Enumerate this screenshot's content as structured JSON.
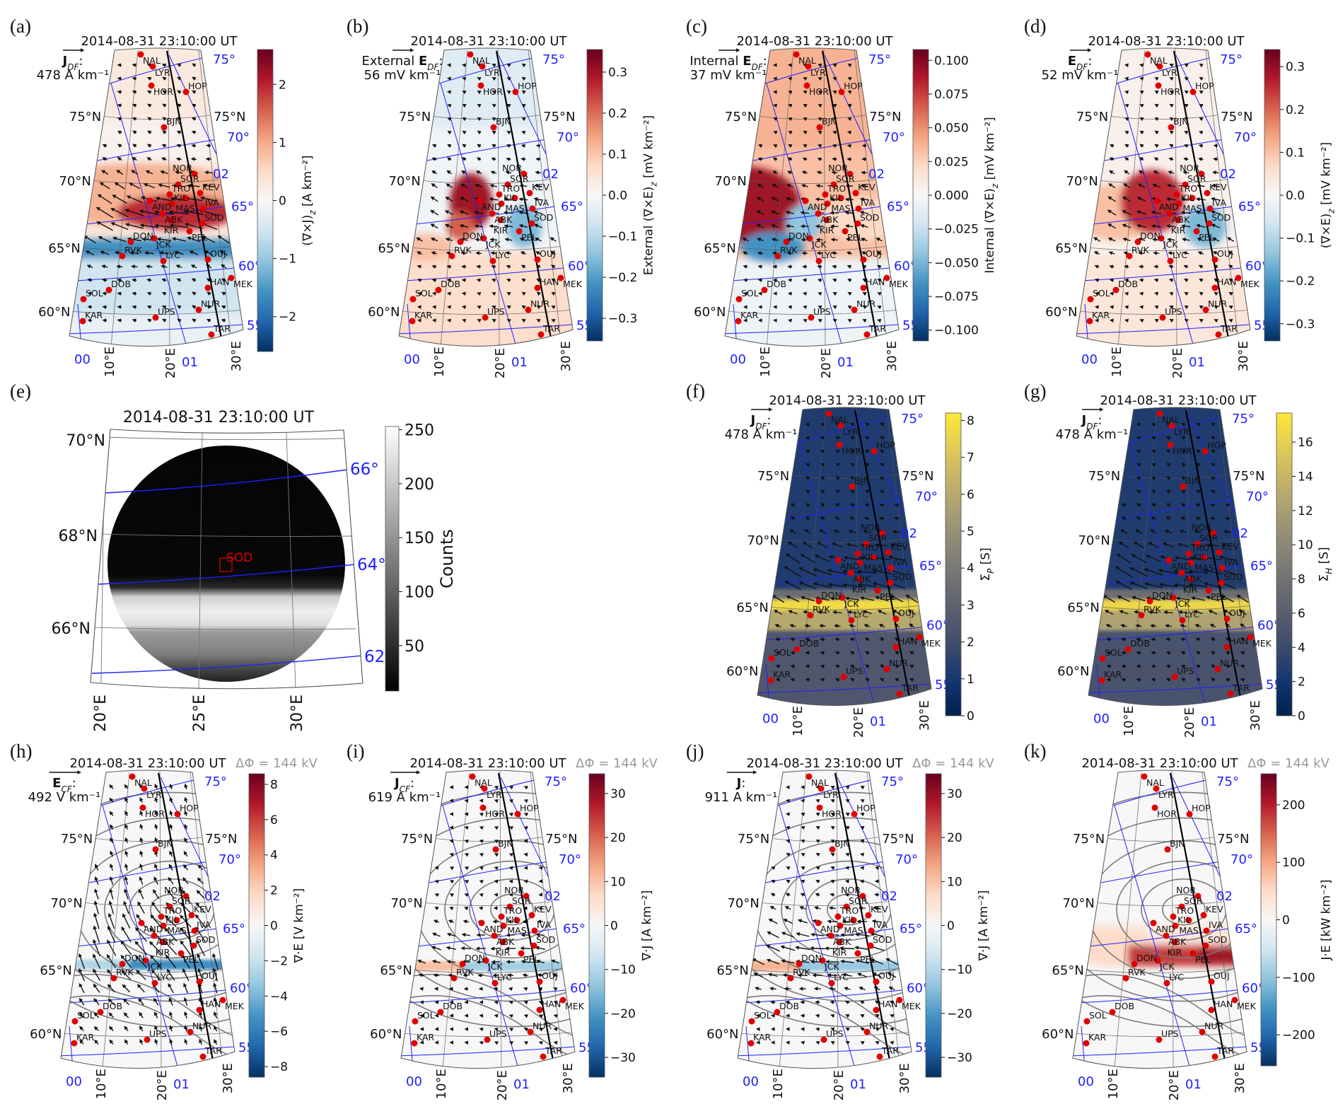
{
  "colors": {
    "station_marker": "#e00000",
    "magnetic_grid": "#2020ff",
    "meridian_line": "#000000",
    "delta_phi_text": "#9a9a9a"
  },
  "stations": [
    "NAL",
    "LYR",
    "HOR",
    "HOP",
    "BJN",
    "NOR",
    "SOR",
    "TRO",
    "AND",
    "KIL",
    "MAS",
    "KEV",
    "IVA",
    "ABK",
    "KIR",
    "SOD",
    "PEL",
    "JCK",
    "DON",
    "RVK",
    "LYC",
    "OUJ",
    "MEK",
    "HAN",
    "DOB",
    "SOL",
    "NUR",
    "KAR",
    "UPS",
    "TAR"
  ],
  "map_labels": {
    "lat": [
      "75°N",
      "70°N",
      "65°N",
      "60°N"
    ],
    "lon": [
      "10°E",
      "20°E",
      "30°E"
    ],
    "mlat": [
      "75°",
      "70°",
      "65°",
      "60°",
      "55"
    ],
    "mlt": [
      "00",
      "01",
      "02"
    ]
  },
  "panels": [
    {
      "id": "a",
      "label": "(a)",
      "title": "2014-08-31 23:10:00 UT",
      "vector": {
        "prefix": "",
        "symbol": "J",
        "sub": "DF",
        "suffix": ":",
        "value": "478 A km⁻¹"
      },
      "colorbar": {
        "label_main": "(∇×J)",
        "label_sub": "z",
        "label_unit": " [A km⁻²]",
        "colormap": "RdBu_r",
        "range": [
          -2.6,
          2.6
        ],
        "ticks": [
          -2,
          -1,
          0,
          1,
          2
        ],
        "tick_labels": [
          "−2",
          "−1",
          "0",
          "1",
          "2"
        ]
      }
    },
    {
      "id": "b",
      "label": "(b)",
      "title": "2014-08-31 23:10:00 UT",
      "vector": {
        "prefix": "External ",
        "symbol": "E",
        "sub": "DF",
        "suffix": ":",
        "value": "56 mV km⁻¹"
      },
      "colorbar": {
        "label_main": "External (∇×E)",
        "label_sub": "z",
        "label_unit": " [mV km⁻²]",
        "colormap": "RdBu_r",
        "range": [
          -0.355,
          0.355
        ],
        "ticks": [
          -0.3,
          -0.2,
          -0.1,
          0,
          0.1,
          0.2,
          0.3
        ],
        "tick_labels": [
          "−0.3",
          "−0.2",
          "−0.1",
          "0.0",
          "0.1",
          "0.2",
          "0.3"
        ]
      }
    },
    {
      "id": "c",
      "label": "(c)",
      "title": "2014-08-31 23:10:00 UT",
      "vector": {
        "prefix": "Internal ",
        "symbol": "E",
        "sub": "DF",
        "suffix": ":",
        "value": "37 mV km⁻¹"
      },
      "colorbar": {
        "label_main": "Internal (∇×E)",
        "label_sub": "z",
        "label_unit": " [mV km⁻²]",
        "colormap": "RdBu_r",
        "range": [
          -0.108,
          0.108
        ],
        "ticks": [
          -0.1,
          -0.075,
          -0.05,
          -0.025,
          0,
          0.025,
          0.05,
          0.075,
          0.1
        ],
        "tick_labels": [
          "−0.100",
          "−0.075",
          "−0.050",
          "−0.025",
          "0.000",
          "0.025",
          "0.050",
          "0.075",
          "0.100"
        ]
      }
    },
    {
      "id": "d",
      "label": "(d)",
      "title": "2014-08-31 23:10:00 UT",
      "vector": {
        "prefix": "",
        "symbol": "E",
        "sub": "DF",
        "suffix": ":",
        "value": "52 mV km⁻¹"
      },
      "colorbar": {
        "label_main": "(∇×E)",
        "label_sub": "z",
        "label_unit": " [mV km⁻²]",
        "colormap": "RdBu_r",
        "range": [
          -0.34,
          0.34
        ],
        "ticks": [
          -0.3,
          -0.2,
          -0.1,
          0,
          0.1,
          0.2,
          0.3
        ],
        "tick_labels": [
          "−0.3",
          "−0.2",
          "−0.1",
          "0.0",
          "0.1",
          "0.2",
          "0.3"
        ]
      }
    },
    {
      "id": "e",
      "label": "(e)",
      "title": "2014-08-31 23:10:00 UT",
      "station": "SOD",
      "lat_labels": [
        "70°N",
        "68°N",
        "66°N"
      ],
      "lon_labels": [
        "20°E",
        "25°E",
        "30°E"
      ],
      "mlat_labels": [
        "66°",
        "64°",
        "62"
      ],
      "colorbar": {
        "label_main": "Counts",
        "label_sub": "",
        "label_unit": "",
        "colormap": "gray",
        "range": [
          8,
          253
        ],
        "ticks": [
          50,
          100,
          150,
          200,
          250
        ],
        "tick_labels": [
          "50",
          "100",
          "150",
          "200",
          "250"
        ]
      }
    },
    {
      "id": "f",
      "label": "(f)",
      "title": "2014-08-31 23:10:00 UT",
      "vector": {
        "prefix": "",
        "symbol": "J",
        "sub": "DF",
        "suffix": ":",
        "value": "478 A km⁻¹"
      },
      "colorbar": {
        "label_main": "Σ",
        "label_sub": "P",
        "label_unit": " [S]",
        "colormap": "cividis",
        "range": [
          0,
          8.2
        ],
        "ticks": [
          0,
          1,
          2,
          3,
          4,
          5,
          6,
          7,
          8
        ],
        "tick_labels": [
          "0",
          "1",
          "2",
          "3",
          "4",
          "5",
          "6",
          "7",
          "8"
        ]
      }
    },
    {
      "id": "g",
      "label": "(g)",
      "title": "2014-08-31 23:10:00 UT",
      "vector": {
        "prefix": "",
        "symbol": "J",
        "sub": "DF",
        "suffix": ":",
        "value": "478 A km⁻¹"
      },
      "colorbar": {
        "label_main": "Σ",
        "label_sub": "H",
        "label_unit": " [S]",
        "colormap": "cividis",
        "range": [
          0,
          17.7
        ],
        "ticks": [
          0,
          2,
          4,
          6,
          8,
          10,
          12,
          14,
          16
        ],
        "tick_labels": [
          "0",
          "2",
          "4",
          "6",
          "8",
          "10",
          "12",
          "14",
          "16"
        ]
      }
    },
    {
      "id": "h",
      "label": "(h)",
      "title": "2014-08-31 23:10:00 UT",
      "delta_phi": "ΔΦ = 144 kV",
      "vector": {
        "prefix": "",
        "symbol": "E",
        "sub": "CF",
        "suffix": ":",
        "value": "492 V km⁻¹"
      },
      "colorbar": {
        "label_main": "∇·E",
        "label_sub": "",
        "label_unit": " [V km⁻²]",
        "colormap": "RdBu_r",
        "range": [
          -8.6,
          8.6
        ],
        "ticks": [
          -8,
          -6,
          -4,
          -2,
          0,
          2,
          4,
          6,
          8
        ],
        "tick_labels": [
          "−8",
          "−6",
          "−4",
          "−2",
          "0",
          "2",
          "4",
          "6",
          "8"
        ]
      }
    },
    {
      "id": "i",
      "label": "(i)",
      "title": "2014-08-31 23:10:00 UT",
      "delta_phi": "ΔΦ = 144 kV",
      "vector": {
        "prefix": "",
        "symbol": "J",
        "sub": "CF",
        "suffix": ":",
        "value": "619 A km⁻¹"
      },
      "colorbar": {
        "label_main": "∇·J",
        "label_sub": "",
        "label_unit": " [A km⁻²]",
        "colormap": "RdBu_r",
        "range": [
          -34.5,
          34.5
        ],
        "ticks": [
          -30,
          -20,
          -10,
          0,
          10,
          20,
          30
        ],
        "tick_labels": [
          "−30",
          "−20",
          "−10",
          "0",
          "10",
          "20",
          "30"
        ]
      }
    },
    {
      "id": "j",
      "label": "(j)",
      "title": "2014-08-31 23:10:00 UT",
      "delta_phi": "ΔΦ = 144 kV",
      "vector": {
        "prefix": "",
        "symbol": "J",
        "sub": "",
        "suffix": ":",
        "value": "911 A km⁻¹"
      },
      "colorbar": {
        "label_main": "∇·J",
        "label_sub": "",
        "label_unit": " [A km⁻²]",
        "colormap": "RdBu_r",
        "range": [
          -34.5,
          34.5
        ],
        "ticks": [
          -30,
          -20,
          -10,
          0,
          10,
          20,
          30
        ],
        "tick_labels": [
          "−30",
          "−20",
          "−10",
          "0",
          "10",
          "20",
          "30"
        ]
      }
    },
    {
      "id": "k",
      "label": "(k)",
      "title": "2014-08-31 23:10:00 UT",
      "delta_phi": "ΔΦ = 144 kV",
      "colorbar": {
        "label_main": "J·E",
        "label_sub": "",
        "label_unit": " [kW km⁻²]",
        "colormap": "RdBu_r",
        "range": [
          -254,
          254
        ],
        "ticks": [
          -200,
          -100,
          0,
          100,
          200
        ],
        "tick_labels": [
          "−200",
          "−100",
          "0",
          "100",
          "200"
        ]
      }
    }
  ]
}
